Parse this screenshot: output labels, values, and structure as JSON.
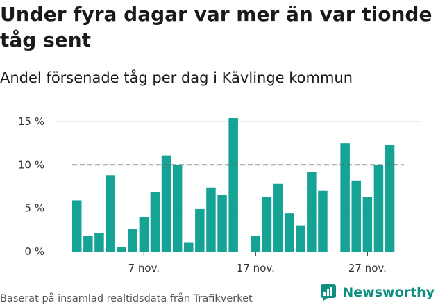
{
  "title": "Under fyra dagar var mer än var tionde tåg sent",
  "subtitle": "Andel försenade tåg per dag i Kävlinge kommun",
  "source": "Baserat på insamlad realtidsdata från Trafikverket",
  "brand": {
    "name": "Newsworthy",
    "icon": "newsworthy-logo-icon",
    "color": "#0f8f7f"
  },
  "chart_data": {
    "type": "bar",
    "title": "Under fyra dagar var mer än var tionde tåg sent",
    "subtitle": "Andel försenade tåg per dag i Kävlinge kommun",
    "categories": [
      "1",
      "2",
      "3",
      "4",
      "5",
      "6",
      "7",
      "8",
      "9",
      "10",
      "11",
      "12",
      "13",
      "14",
      "15",
      "16",
      "17",
      "18",
      "19",
      "20",
      "21",
      "22",
      "23",
      "24",
      "25",
      "26",
      "27",
      "28",
      "29",
      "30"
    ],
    "values": [
      5.9,
      1.8,
      2.1,
      8.8,
      0.5,
      2.6,
      4.0,
      6.9,
      11.1,
      10.0,
      1.0,
      4.9,
      7.4,
      6.5,
      15.4,
      null,
      1.8,
      6.3,
      7.8,
      4.4,
      3.0,
      9.2,
      7.0,
      null,
      12.5,
      8.2,
      6.3,
      10.0,
      12.3,
      null
    ],
    "reference_line": 10,
    "ylim": [
      0,
      15
    ],
    "y_ticks": [
      0,
      5,
      10,
      15
    ],
    "y_tick_labels": [
      "0 %",
      "5 %",
      "10 %",
      "15 %"
    ],
    "x_ticks": [
      {
        "index": 6,
        "label": "7 nov."
      },
      {
        "index": 16,
        "label": "17 nov."
      },
      {
        "index": 26,
        "label": "27 nov."
      }
    ],
    "bar_color": "#14a395",
    "grid": true
  }
}
